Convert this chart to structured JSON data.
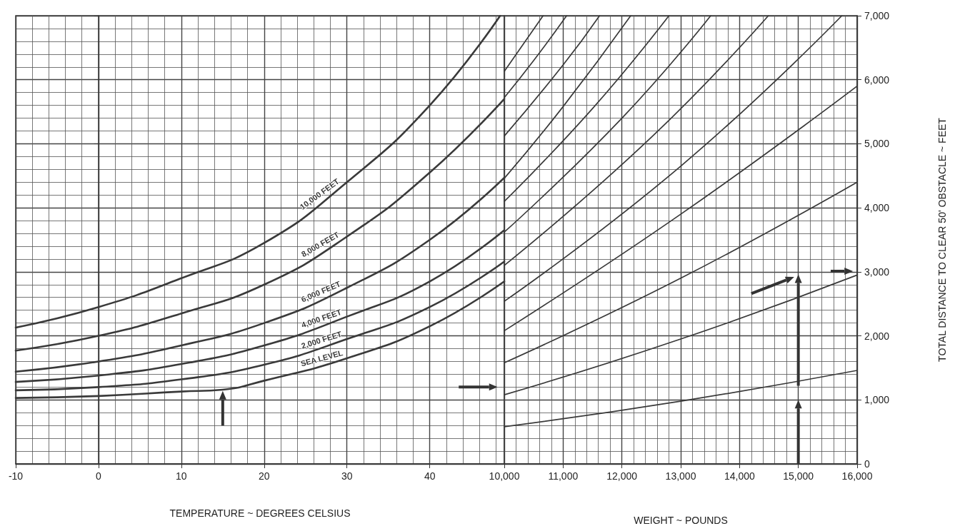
{
  "chart_data": [
    {
      "type": "line",
      "xlabel": "TEMPERATURE ~ DEGREES CELSIUS",
      "xlim": [
        -10,
        49
      ],
      "xticks": [
        -10,
        0,
        10,
        20,
        30,
        40
      ],
      "ylim": [
        0,
        7000
      ],
      "yticks": [
        0,
        1000,
        2000,
        3000,
        4000,
        5000,
        6000,
        7000
      ],
      "grid": true,
      "tick_labels": "x",
      "marker": "none",
      "line_style": "solid",
      "series": [
        {
          "name": "10,000 FEET",
          "color": "#3a3a3a",
          "x": [
            -10,
            0,
            10,
            20,
            30,
            40,
            48.5
          ],
          "values": [
            2130,
            2450,
            2900,
            3450,
            4400,
            5600,
            7000
          ]
        },
        {
          "name": "8,000 FEET",
          "color": "#3a3a3a",
          "x": [
            -10,
            0,
            10,
            20,
            30,
            40,
            49
          ],
          "values": [
            1770,
            2000,
            2350,
            2800,
            3550,
            4550,
            5700
          ]
        },
        {
          "name": "6,000 FEET",
          "color": "#3a3a3a",
          "x": [
            -10,
            0,
            10,
            20,
            30,
            40,
            49
          ],
          "values": [
            1440,
            1600,
            1850,
            2200,
            2750,
            3500,
            4470
          ]
        },
        {
          "name": "4,000 FEET",
          "color": "#3a3a3a",
          "x": [
            -10,
            0,
            10,
            20,
            30,
            40,
            49
          ],
          "values": [
            1280,
            1380,
            1560,
            1850,
            2300,
            2850,
            3650
          ]
        },
        {
          "name": "2,000 FEET",
          "color": "#3a3a3a",
          "x": [
            -10,
            0,
            10,
            20,
            30,
            40,
            49
          ],
          "values": [
            1150,
            1200,
            1320,
            1550,
            1950,
            2450,
            3160
          ]
        },
        {
          "name": "SEA LEVEL",
          "color": "#3a3a3a",
          "x": [
            -10,
            0,
            10,
            15,
            20,
            30,
            40,
            49
          ],
          "values": [
            1030,
            1060,
            1130,
            1160,
            1300,
            1650,
            2150,
            2850
          ]
        }
      ]
    },
    {
      "type": "line",
      "xlabel": "WEIGHT ~ POUNDS",
      "ylabel": "TOTAL DISTANCE TO CLEAR 50' OBSTACLE ~ FEET",
      "xlim": [
        10000,
        16000
      ],
      "xticks": [
        {
          "value": 10000,
          "label": "10,000"
        },
        {
          "value": 11000,
          "label": "11,000"
        },
        {
          "value": 12000,
          "label": "12,000"
        },
        {
          "value": 13000,
          "label": "13,000"
        },
        {
          "value": 14000,
          "label": "14,000"
        },
        {
          "value": 15000,
          "label": "15,000"
        },
        {
          "value": 16000,
          "label": "16,000"
        }
      ],
      "ylim": [
        0,
        7000
      ],
      "yticks": [
        0,
        {
          "value": 1000,
          "label": "1,000"
        },
        {
          "value": 2000,
          "label": "2,000"
        },
        {
          "value": 3000,
          "label": "3,000"
        },
        {
          "value": 4000,
          "label": "4,000"
        },
        {
          "value": 5000,
          "label": "5,000"
        },
        {
          "value": 6000,
          "label": "6,000"
        },
        {
          "value": 7000,
          "label": "7,000"
        }
      ],
      "grid": true,
      "marker": "none",
      "line_style": "solid",
      "series": [
        {
          "color": "#3a3a3a",
          "x": [
            10000,
            13000,
            16000
          ],
          "values": [
            580,
            980,
            1460
          ]
        },
        {
          "color": "#3a3a3a",
          "x": [
            10000,
            13000,
            16000
          ],
          "values": [
            1080,
            1950,
            2950
          ]
        },
        {
          "color": "#3a3a3a",
          "x": [
            10000,
            13000,
            16000
          ],
          "values": [
            1580,
            2900,
            4400
          ]
        },
        {
          "color": "#3a3a3a",
          "x": [
            10000,
            13000,
            16000
          ],
          "values": [
            2080,
            3900,
            5900
          ]
        },
        {
          "color": "#3a3a3a",
          "x": [
            10000,
            13000,
            15740
          ],
          "values": [
            2540,
            4650,
            7000
          ]
        },
        {
          "color": "#3a3a3a",
          "x": [
            10000,
            12500,
            14490
          ],
          "values": [
            3100,
            5100,
            7000
          ]
        },
        {
          "color": "#3a3a3a",
          "x": [
            10000,
            12000,
            13510
          ],
          "values": [
            3620,
            5400,
            7000
          ]
        },
        {
          "color": "#3a3a3a",
          "x": [
            10000,
            11500,
            12800
          ],
          "values": [
            4100,
            5550,
            7000
          ]
        },
        {
          "color": "#3a3a3a",
          "x": [
            10000,
            11000,
            12150
          ],
          "values": [
            4460,
            5580,
            7000
          ]
        },
        {
          "color": "#3a3a3a",
          "x": [
            10000,
            11000,
            11620
          ],
          "values": [
            5120,
            6230,
            7000
          ]
        },
        {
          "color": "#3a3a3a",
          "x": [
            10000,
            10500,
            11060
          ],
          "values": [
            5720,
            6300,
            7000
          ]
        },
        {
          "color": "#3a3a3a",
          "x": [
            10000,
            10660
          ],
          "values": [
            6130,
            7000
          ]
        }
      ]
    }
  ]
}
